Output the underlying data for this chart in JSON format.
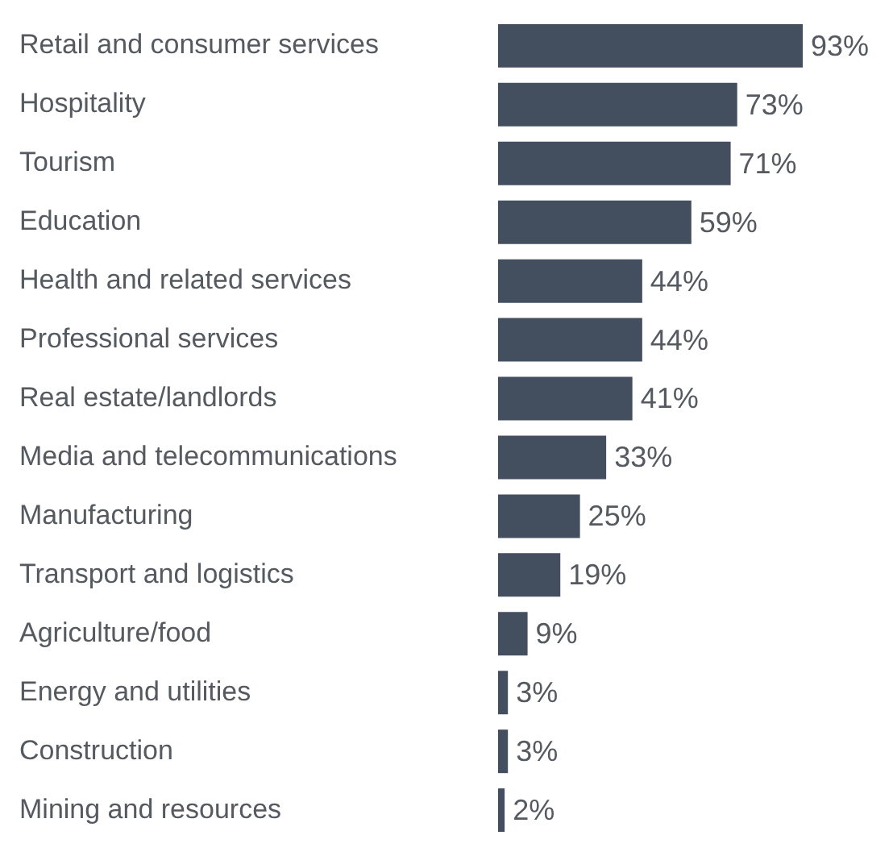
{
  "chart_data": {
    "type": "bar",
    "orientation": "horizontal",
    "color": "#434f5e",
    "categories": [
      "Retail and consumer services",
      "Hospitality",
      "Tourism",
      "Education",
      "Health and related services",
      "Professional services",
      "Real estate/landlords",
      "Media and telecommunications",
      "Manufacturing",
      "Transport and logistics",
      "Agriculture/food",
      "Energy and utilities",
      "Construction",
      "Mining and resources"
    ],
    "values": [
      93,
      73,
      71,
      59,
      44,
      44,
      41,
      33,
      25,
      19,
      9,
      3,
      3,
      2
    ],
    "value_labels": [
      "93%",
      "73%",
      "71%",
      "59%",
      "44%",
      "44%",
      "41%",
      "33%",
      "25%",
      "19%",
      "9%",
      "3%",
      "3%",
      "2%"
    ],
    "legend": false
  }
}
